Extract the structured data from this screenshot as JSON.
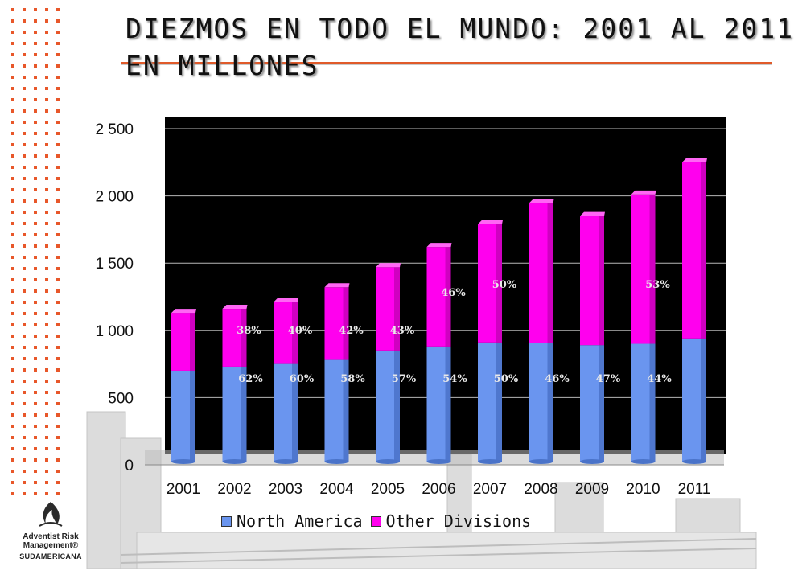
{
  "slide": {
    "title_line1": "DIEZMOS EN TODO EL MUNDO: 2001 AL 2011",
    "title_line2": "EN MILLONES"
  },
  "logo": {
    "brand": "Adventist Risk Management®",
    "region": "SUDAMERICANA"
  },
  "colors": {
    "north_america": "#6a95ef",
    "other_divisions": "#ff00ee",
    "plot_background": "#000000",
    "accent": "#e05a2a"
  },
  "chart_data": {
    "type": "bar",
    "stacked": true,
    "categories": [
      "2001",
      "2002",
      "2003",
      "2004",
      "2005",
      "2006",
      "2007",
      "2008",
      "2009",
      "2010",
      "2011"
    ],
    "series": [
      {
        "name": "North America",
        "values": [
          700,
          730,
          750,
          780,
          850,
          880,
          910,
          905,
          890,
          900,
          940
        ]
      },
      {
        "name": "Other Divisions",
        "values": [
          430,
          430,
          460,
          540,
          620,
          740,
          880,
          1040,
          960,
          1110,
          1310
        ]
      }
    ],
    "ylim": [
      0,
      2500
    ],
    "yticks": [
      {
        "value": 0,
        "label": "0"
      },
      {
        "value": 500,
        "label": "500"
      },
      {
        "value": 1000,
        "label": "1 000"
      },
      {
        "value": 1500,
        "label": "1 500"
      },
      {
        "value": 2000,
        "label": "2 000"
      },
      {
        "value": 2500,
        "label": "2 500"
      }
    ],
    "data_labels_bottom": [
      {
        "index": 1,
        "value": 62,
        "text": "62%"
      },
      {
        "index": 2,
        "value": 60,
        "text": "60%"
      },
      {
        "index": 3,
        "value": 58,
        "text": "58%"
      },
      {
        "index": 4,
        "value": 57,
        "text": "57%"
      },
      {
        "index": 5,
        "value": 54,
        "text": "54%"
      },
      {
        "index": 6,
        "value": 50,
        "text": "50%"
      },
      {
        "index": 7,
        "value": 46,
        "text": "46%"
      },
      {
        "index": 8,
        "value": 47,
        "text": "47%"
      },
      {
        "index": 9,
        "value": 44,
        "text": "44%"
      }
    ],
    "data_labels_top": [
      {
        "index": 1,
        "value": 38,
        "text": "38%",
        "level": 1000
      },
      {
        "index": 2,
        "value": 40,
        "text": "40%",
        "level": 1000
      },
      {
        "index": 3,
        "value": 42,
        "text": "42%",
        "level": 1000
      },
      {
        "index": 4,
        "value": 43,
        "text": "43%",
        "level": 1000
      },
      {
        "index": 5,
        "value": 46,
        "text": "46%",
        "level": 1280
      },
      {
        "index": 6,
        "value": 50,
        "text": "50%",
        "level": 1340
      },
      {
        "index": 9,
        "value": 53,
        "text": "53%",
        "level": 1340
      }
    ],
    "legend_position": "bottom",
    "grid": true
  }
}
